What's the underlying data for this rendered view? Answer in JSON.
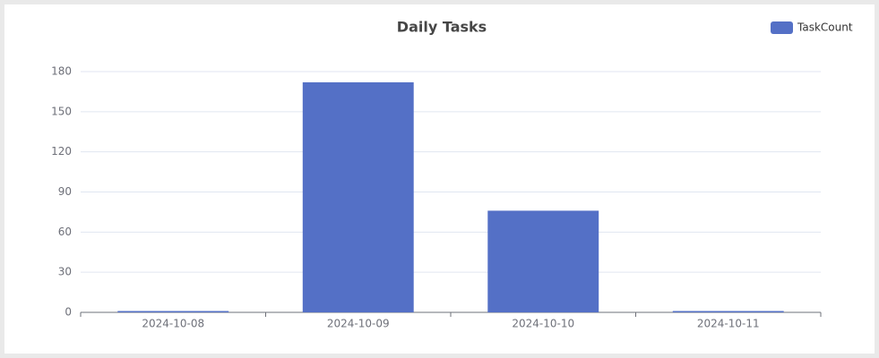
{
  "chart_data": {
    "type": "bar",
    "title": "Daily Tasks",
    "categories": [
      "2024-10-08",
      "2024-10-09",
      "2024-10-10",
      "2024-10-11"
    ],
    "series": [
      {
        "name": "TaskCount",
        "color": "#5470c6",
        "values": [
          1,
          172,
          76,
          1
        ]
      }
    ],
    "ylim": [
      0,
      180
    ],
    "yticks": [
      0,
      30,
      60,
      90,
      120,
      150,
      180
    ],
    "grid": true,
    "legend": "top-right"
  }
}
